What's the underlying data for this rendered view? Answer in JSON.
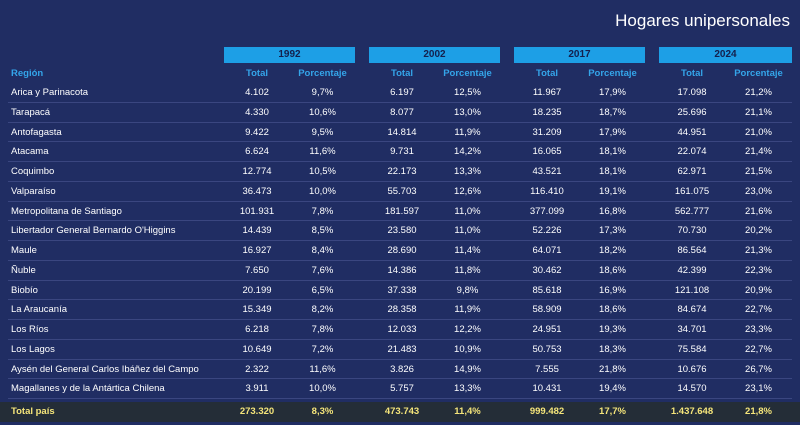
{
  "title": "Hogares unipersonales",
  "region_header": "Región",
  "years": [
    "1992",
    "2002",
    "2017",
    "2024"
  ],
  "col_total": "Total",
  "col_pct": "Porcentaje",
  "rows": [
    {
      "region": "Arica y Parinacota",
      "values": [
        "4.102",
        "9,7%",
        "6.197",
        "12,5%",
        "11.967",
        "17,9%",
        "17.098",
        "21,2%"
      ]
    },
    {
      "region": "Tarapacá",
      "values": [
        "4.330",
        "10,6%",
        "8.077",
        "13,0%",
        "18.235",
        "18,7%",
        "25.696",
        "21,1%"
      ]
    },
    {
      "region": "Antofagasta",
      "values": [
        "9.422",
        "9,5%",
        "14.814",
        "11,9%",
        "31.209",
        "17,9%",
        "44.951",
        "21,0%"
      ]
    },
    {
      "region": "Atacama",
      "values": [
        "6.624",
        "11,6%",
        "9.731",
        "14,2%",
        "16.065",
        "18,1%",
        "22.074",
        "21,4%"
      ]
    },
    {
      "region": "Coquimbo",
      "values": [
        "12.774",
        "10,5%",
        "22.173",
        "13,3%",
        "43.521",
        "18,1%",
        "62.971",
        "21,5%"
      ]
    },
    {
      "region": "Valparaíso",
      "values": [
        "36.473",
        "10,0%",
        "55.703",
        "12,6%",
        "116.410",
        "19,1%",
        "161.075",
        "23,0%"
      ]
    },
    {
      "region": "Metropolitana de Santiago",
      "values": [
        "101.931",
        "7,8%",
        "181.597",
        "11,0%",
        "377.099",
        "16,8%",
        "562.777",
        "21,6%"
      ]
    },
    {
      "region": "Libertador General Bernardo O'Higgins",
      "values": [
        "14.439",
        "8,5%",
        "23.580",
        "11,0%",
        "52.226",
        "17,3%",
        "70.730",
        "20,2%"
      ]
    },
    {
      "region": "Maule",
      "values": [
        "16.927",
        "8,4%",
        "28.690",
        "11,4%",
        "64.071",
        "18,2%",
        "86.564",
        "21,3%"
      ]
    },
    {
      "region": "Ñuble",
      "values": [
        "7.650",
        "7,6%",
        "14.386",
        "11,8%",
        "30.462",
        "18,6%",
        "42.399",
        "22,3%"
      ]
    },
    {
      "region": "Biobío",
      "values": [
        "20.199",
        "6,5%",
        "37.338",
        "9,8%",
        "85.618",
        "16,9%",
        "121.108",
        "20,9%"
      ]
    },
    {
      "region": "La Araucanía",
      "values": [
        "15.349",
        "8,2%",
        "28.358",
        "11,9%",
        "58.909",
        "18,6%",
        "84.674",
        "22,7%"
      ]
    },
    {
      "region": "Los Ríos",
      "values": [
        "6.218",
        "7,8%",
        "12.033",
        "12,2%",
        "24.951",
        "19,3%",
        "34.701",
        "23,3%"
      ]
    },
    {
      "region": "Los Lagos",
      "values": [
        "10.649",
        "7,2%",
        "21.483",
        "10,9%",
        "50.753",
        "18,3%",
        "75.584",
        "22,7%"
      ]
    },
    {
      "region": "Aysén del General Carlos Ibáñez del Campo",
      "values": [
        "2.322",
        "11,6%",
        "3.826",
        "14,9%",
        "7.555",
        "21,8%",
        "10.676",
        "26,7%"
      ]
    },
    {
      "region": "Magallanes y de la Antártica Chilena",
      "values": [
        "3.911",
        "10,0%",
        "5.757",
        "13,3%",
        "10.431",
        "19,4%",
        "14.570",
        "23,1%"
      ]
    }
  ],
  "total": {
    "label": "Total país",
    "values": [
      "273.320",
      "8,3%",
      "473.743",
      "11,4%",
      "999.482",
      "17,7%",
      "1.437.648",
      "21,8%"
    ]
  },
  "colors": {
    "background": "#202d63",
    "year_band": "#1d9fe6",
    "header_text": "#34a5ea",
    "total_text": "#f5e57a",
    "total_bg": "#242d37"
  }
}
